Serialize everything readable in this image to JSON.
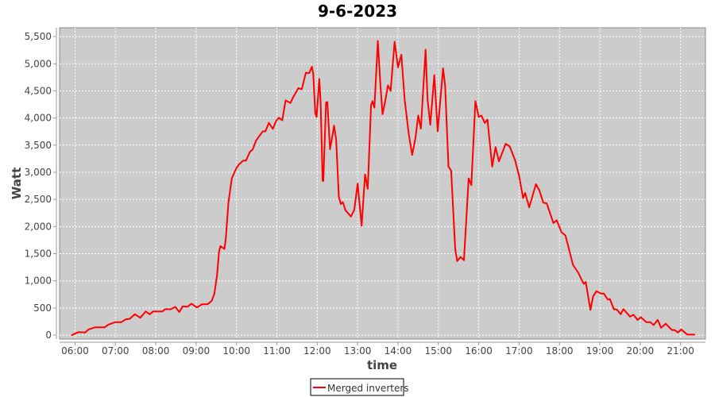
{
  "chart_data": {
    "type": "line",
    "title": "9-6-2023",
    "xlabel": "time",
    "ylabel": "Watt",
    "xlim": [
      "05:37",
      "21:37"
    ],
    "ylim": [
      -72,
      5662
    ],
    "x_ticks": [
      "06:00",
      "07:00",
      "08:00",
      "09:00",
      "10:00",
      "11:00",
      "12:00",
      "13:00",
      "14:00",
      "15:00",
      "16:00",
      "17:00",
      "18:00",
      "19:00",
      "20:00",
      "21:00"
    ],
    "y_ticks": [
      "0",
      "500",
      "1,000",
      "1,500",
      "2,000",
      "2,500",
      "3,000",
      "3,500",
      "4,000",
      "4,500",
      "5,000",
      "5,500"
    ],
    "y_tick_values": [
      0,
      500,
      1000,
      1500,
      2000,
      2500,
      3000,
      3500,
      4000,
      4500,
      5000,
      5500
    ],
    "grid": true,
    "legend_position": "bottom",
    "colors": {
      "plot_background": "#cccccc",
      "gridline": "#ffffff",
      "series": "#ff0000"
    },
    "series": [
      {
        "name": "Merged inverters",
        "color": "#ff0000",
        "points": [
          [
            "05:55",
            0
          ],
          [
            "06:05",
            55
          ],
          [
            "06:15",
            50
          ],
          [
            "06:20",
            105
          ],
          [
            "06:30",
            145
          ],
          [
            "06:44",
            145
          ],
          [
            "06:50",
            195
          ],
          [
            "07:00",
            240
          ],
          [
            "07:09",
            240
          ],
          [
            "07:15",
            290
          ],
          [
            "07:21",
            300
          ],
          [
            "07:29",
            385
          ],
          [
            "07:37",
            320
          ],
          [
            "07:45",
            435
          ],
          [
            "07:51",
            385
          ],
          [
            "07:56",
            435
          ],
          [
            "08:10",
            435
          ],
          [
            "08:14",
            480
          ],
          [
            "08:22",
            475
          ],
          [
            "08:29",
            520
          ],
          [
            "08:35",
            425
          ],
          [
            "08:40",
            530
          ],
          [
            "08:47",
            520
          ],
          [
            "08:53",
            580
          ],
          [
            "09:01",
            510
          ],
          [
            "09:09",
            570
          ],
          [
            "09:17",
            570
          ],
          [
            "09:23",
            630
          ],
          [
            "09:27",
            760
          ],
          [
            "09:31",
            1100
          ],
          [
            "09:34",
            1535
          ],
          [
            "09:36",
            1640
          ],
          [
            "09:42",
            1590
          ],
          [
            "09:44",
            1775
          ],
          [
            "09:48",
            2450
          ],
          [
            "09:53",
            2890
          ],
          [
            "10:00",
            3080
          ],
          [
            "10:04",
            3150
          ],
          [
            "10:10",
            3215
          ],
          [
            "10:14",
            3215
          ],
          [
            "10:20",
            3380
          ],
          [
            "10:24",
            3420
          ],
          [
            "10:29",
            3585
          ],
          [
            "10:39",
            3755
          ],
          [
            "10:43",
            3755
          ],
          [
            "10:48",
            3910
          ],
          [
            "10:54",
            3800
          ],
          [
            "10:59",
            3950
          ],
          [
            "11:03",
            4005
          ],
          [
            "11:08",
            3960
          ],
          [
            "11:13",
            4325
          ],
          [
            "11:20",
            4275
          ],
          [
            "11:24",
            4380
          ],
          [
            "11:32",
            4550
          ],
          [
            "11:37",
            4530
          ],
          [
            "11:43",
            4835
          ],
          [
            "11:48",
            4825
          ],
          [
            "11:52",
            4945
          ],
          [
            "11:54",
            4815
          ],
          [
            "11:57",
            4090
          ],
          [
            "11:59",
            4020
          ],
          [
            "12:03",
            4720
          ],
          [
            "12:05",
            4285
          ],
          [
            "12:08",
            2840
          ],
          [
            "12:09",
            2840
          ],
          [
            "12:13",
            4285
          ],
          [
            "12:15",
            4295
          ],
          [
            "12:19",
            3425
          ],
          [
            "12:23",
            3705
          ],
          [
            "12:25",
            3860
          ],
          [
            "12:28",
            3610
          ],
          [
            "12:32",
            2550
          ],
          [
            "12:35",
            2415
          ],
          [
            "12:38",
            2450
          ],
          [
            "12:42",
            2300
          ],
          [
            "12:50",
            2185
          ],
          [
            "12:55",
            2305
          ],
          [
            "13:00",
            2790
          ],
          [
            "13:06",
            2015
          ],
          [
            "13:11",
            2960
          ],
          [
            "13:15",
            2695
          ],
          [
            "13:20",
            4240
          ],
          [
            "13:22",
            4310
          ],
          [
            "13:25",
            4190
          ],
          [
            "13:30",
            5420
          ],
          [
            "13:34",
            4575
          ],
          [
            "13:37",
            4070
          ],
          [
            "13:40",
            4240
          ],
          [
            "13:45",
            4600
          ],
          [
            "13:49",
            4500
          ],
          [
            "13:55",
            5405
          ],
          [
            "14:00",
            4935
          ],
          [
            "14:05",
            5165
          ],
          [
            "14:10",
            4335
          ],
          [
            "14:16",
            3705
          ],
          [
            "14:21",
            3320
          ],
          [
            "14:26",
            3635
          ],
          [
            "14:30",
            4045
          ],
          [
            "14:34",
            3805
          ],
          [
            "14:41",
            5260
          ],
          [
            "14:44",
            4335
          ],
          [
            "14:48",
            3875
          ],
          [
            "14:54",
            4790
          ],
          [
            "14:59",
            3755
          ],
          [
            "15:07",
            4915
          ],
          [
            "15:10",
            4600
          ],
          [
            "15:15",
            3105
          ],
          [
            "15:19",
            3030
          ],
          [
            "15:25",
            1585
          ],
          [
            "15:28",
            1365
          ],
          [
            "15:33",
            1440
          ],
          [
            "15:38",
            1380
          ],
          [
            "15:45",
            2885
          ],
          [
            "15:49",
            2765
          ],
          [
            "15:55",
            4310
          ],
          [
            "16:00",
            4020
          ],
          [
            "16:04",
            4045
          ],
          [
            "16:09",
            3910
          ],
          [
            "16:13",
            3970
          ],
          [
            "16:20",
            3105
          ],
          [
            "16:25",
            3465
          ],
          [
            "16:30",
            3200
          ],
          [
            "16:40",
            3525
          ],
          [
            "16:46",
            3475
          ],
          [
            "16:54",
            3225
          ],
          [
            "17:00",
            2935
          ],
          [
            "17:06",
            2525
          ],
          [
            "17:09",
            2620
          ],
          [
            "17:15",
            2355
          ],
          [
            "17:25",
            2780
          ],
          [
            "17:30",
            2670
          ],
          [
            "17:36",
            2440
          ],
          [
            "17:41",
            2430
          ],
          [
            "17:51",
            2065
          ],
          [
            "17:56",
            2115
          ],
          [
            "18:03",
            1895
          ],
          [
            "18:09",
            1835
          ],
          [
            "18:20",
            1295
          ],
          [
            "18:28",
            1150
          ],
          [
            "18:36",
            945
          ],
          [
            "18:39",
            980
          ],
          [
            "18:46",
            465
          ],
          [
            "18:50",
            715
          ],
          [
            "18:55",
            810
          ],
          [
            "19:02",
            765
          ],
          [
            "19:06",
            765
          ],
          [
            "19:12",
            655
          ],
          [
            "19:15",
            665
          ],
          [
            "19:21",
            475
          ],
          [
            "19:25",
            475
          ],
          [
            "19:31",
            385
          ],
          [
            "19:35",
            480
          ],
          [
            "19:45",
            340
          ],
          [
            "19:50",
            375
          ],
          [
            "19:56",
            280
          ],
          [
            "20:01",
            330
          ],
          [
            "20:09",
            240
          ],
          [
            "20:15",
            240
          ],
          [
            "20:20",
            185
          ],
          [
            "20:26",
            280
          ],
          [
            "20:31",
            135
          ],
          [
            "20:38",
            210
          ],
          [
            "20:47",
            95
          ],
          [
            "20:51",
            95
          ],
          [
            "20:56",
            50
          ],
          [
            "21:01",
            105
          ],
          [
            "21:10",
            10
          ],
          [
            "21:21",
            10
          ]
        ]
      }
    ]
  }
}
